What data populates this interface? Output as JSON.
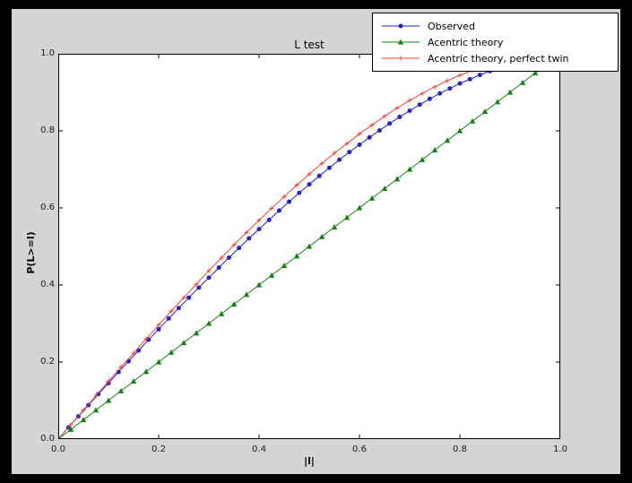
{
  "chart_data": {
    "type": "line",
    "title": "L test",
    "xlabel": "|l|",
    "ylabel": "P(L>=l)",
    "xlim": [
      0.0,
      1.0
    ],
    "ylim": [
      0.0,
      1.0
    ],
    "xticks": [
      0.0,
      0.2,
      0.4,
      0.6,
      0.8,
      1.0
    ],
    "yticks": [
      0.0,
      0.2,
      0.4,
      0.6,
      0.8,
      1.0
    ],
    "grid": false,
    "legend_position": "upper right",
    "series": [
      {
        "name": "Observed",
        "color": "#2222cc",
        "marker": "circle",
        "x": [
          0.0,
          0.02,
          0.04,
          0.06,
          0.08,
          0.1,
          0.12,
          0.14,
          0.16,
          0.18,
          0.2,
          0.22,
          0.24,
          0.26,
          0.28,
          0.3,
          0.32,
          0.34,
          0.36,
          0.38,
          0.4,
          0.42,
          0.44,
          0.46,
          0.48,
          0.5,
          0.52,
          0.54,
          0.56,
          0.58,
          0.6,
          0.62,
          0.64,
          0.66,
          0.68,
          0.7,
          0.72,
          0.74,
          0.76,
          0.78,
          0.8,
          0.82,
          0.84,
          0.86
        ],
        "y": [
          0.0,
          0.03,
          0.059,
          0.088,
          0.117,
          0.145,
          0.174,
          0.202,
          0.23,
          0.258,
          0.285,
          0.313,
          0.34,
          0.367,
          0.393,
          0.419,
          0.445,
          0.471,
          0.496,
          0.521,
          0.545,
          0.569,
          0.593,
          0.616,
          0.639,
          0.661,
          0.683,
          0.704,
          0.725,
          0.745,
          0.764,
          0.783,
          0.801,
          0.819,
          0.836,
          0.852,
          0.868,
          0.883,
          0.897,
          0.91,
          0.923,
          0.934,
          0.945,
          0.955
        ]
      },
      {
        "name": "Acentric theory",
        "color": "#128012",
        "marker": "triangle_up",
        "x": [
          0.0,
          0.025,
          0.05,
          0.075,
          0.1,
          0.125,
          0.15,
          0.175,
          0.2,
          0.225,
          0.25,
          0.275,
          0.3,
          0.325,
          0.35,
          0.375,
          0.4,
          0.425,
          0.45,
          0.475,
          0.5,
          0.525,
          0.55,
          0.575,
          0.6,
          0.625,
          0.65,
          0.675,
          0.7,
          0.725,
          0.75,
          0.775,
          0.8,
          0.825,
          0.85,
          0.875,
          0.9,
          0.925,
          0.95,
          0.975
        ],
        "y": [
          0.0,
          0.025,
          0.05,
          0.075,
          0.1,
          0.125,
          0.15,
          0.175,
          0.2,
          0.225,
          0.25,
          0.275,
          0.3,
          0.325,
          0.35,
          0.375,
          0.4,
          0.425,
          0.45,
          0.475,
          0.5,
          0.525,
          0.55,
          0.575,
          0.6,
          0.625,
          0.65,
          0.675,
          0.7,
          0.725,
          0.75,
          0.775,
          0.8,
          0.825,
          0.85,
          0.875,
          0.9,
          0.925,
          0.95,
          0.975
        ]
      },
      {
        "name": "Acentric theory, perfect twin",
        "color": "#ee4433",
        "marker": "plus",
        "x": [
          0.0,
          0.025,
          0.05,
          0.075,
          0.1,
          0.125,
          0.15,
          0.175,
          0.2,
          0.225,
          0.25,
          0.275,
          0.3,
          0.325,
          0.35,
          0.375,
          0.4,
          0.425,
          0.45,
          0.475,
          0.5,
          0.525,
          0.55,
          0.575,
          0.6,
          0.625,
          0.65,
          0.675,
          0.7,
          0.725,
          0.75,
          0.775,
          0.8,
          0.825,
          0.85,
          0.875,
          0.9,
          0.925,
          0.95,
          0.975
        ],
        "y": [
          0.0,
          0.037,
          0.075,
          0.112,
          0.15,
          0.187,
          0.223,
          0.26,
          0.296,
          0.332,
          0.367,
          0.402,
          0.437,
          0.47,
          0.504,
          0.536,
          0.568,
          0.599,
          0.629,
          0.659,
          0.688,
          0.715,
          0.742,
          0.767,
          0.792,
          0.815,
          0.838,
          0.859,
          0.879,
          0.897,
          0.914,
          0.93,
          0.944,
          0.957,
          0.968,
          0.978,
          0.986,
          0.992,
          0.996,
          0.999
        ]
      }
    ]
  }
}
